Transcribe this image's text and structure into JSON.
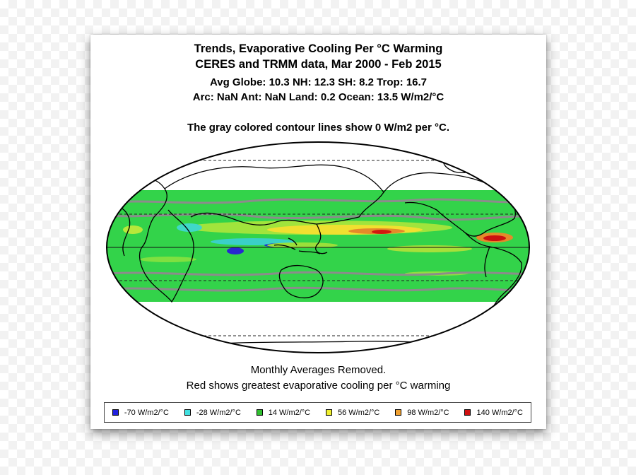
{
  "title": {
    "line1": "Trends, Evaporative Cooling Per °C Warming",
    "line2": "CERES and TRMM data, Mar 2000 - Feb 2015",
    "line3": "Avg Globe: 10.3  NH: 12.3  SH: 8.2  Trop: 16.7",
    "line4": "Arc: NaN  Ant: NaN  Land: 0.2 Ocean: 13.5 W/m2/°C"
  },
  "contour_note": "The gray colored contour lines show 0 W/m2 per °C.",
  "footer": {
    "line1": "Monthly Averages Removed.",
    "line2": "Red shows greatest evaporative cooling per °C warming"
  },
  "map": {
    "projection": "mollweide",
    "data_band": "tropics 40°S–40°N",
    "colors": {
      "background_field": "#33d34a",
      "contour": "#8c8c8c",
      "coastline": "#000000"
    }
  },
  "legend": [
    {
      "label": "-70 W/m2/°C",
      "color": "#2020e0"
    },
    {
      "label": "-28 W/m2/°C",
      "color": "#40e0e0"
    },
    {
      "label": "14 W/m2/°C",
      "color": "#30c030"
    },
    {
      "label": "56 W/m2/°C",
      "color": "#f0f030"
    },
    {
      "label": "98 W/m2/°C",
      "color": "#f0a030"
    },
    {
      "label": "140 W/m2/°C",
      "color": "#d01010"
    }
  ]
}
